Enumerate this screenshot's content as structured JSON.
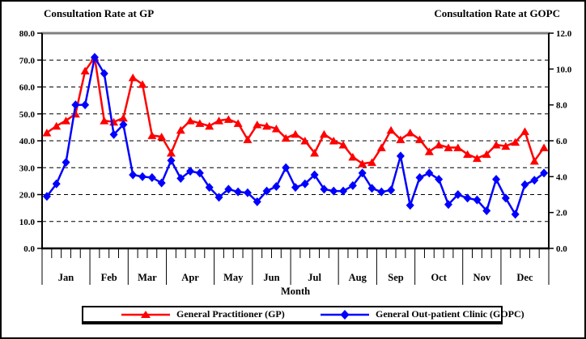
{
  "titles": {
    "left_axis_title": "Consultation Rate at GP",
    "right_axis_title": "Consultation Rate at GOPC",
    "x_axis_title": "Month"
  },
  "legend": {
    "gp_label": "General Practitioner (GP)",
    "gopc_label": "General Out-patient Clinic (GOPC)"
  },
  "colors": {
    "gp": "#ff0000",
    "gopc": "#0000ff",
    "grid": "#000000",
    "plot_top_border": "#808080"
  },
  "chart_data": {
    "type": "line",
    "x_unit": "week",
    "months": [
      "Jan",
      "Feb",
      "Mar",
      "Apr",
      "May",
      "Jun",
      "Jul",
      "Aug",
      "Sep",
      "Oct",
      "Nov",
      "Dec"
    ],
    "weeks_per_month": [
      5,
      4,
      4,
      5,
      4,
      4,
      5,
      4,
      4,
      5,
      4,
      5
    ],
    "xlabel": "Month",
    "grid": "horizontal-dashed",
    "legend_position": "bottom",
    "left_axis": {
      "label": "Consultation Rate at GP",
      "range": [
        0,
        80
      ],
      "tick_step": 10,
      "tick_decimals": 1
    },
    "right_axis": {
      "label": "Consultation Rate at GOPC",
      "range": [
        0,
        12
      ],
      "tick_step": 2,
      "tick_decimals": 1
    },
    "series": [
      {
        "name": "General Practitioner (GP)",
        "axis": "left",
        "color": "#ff0000",
        "marker": "triangle",
        "values": [
          43,
          45.5,
          47.5,
          50,
          66,
          71,
          47.5,
          47,
          48.5,
          63.5,
          61,
          42,
          41.5,
          35.5,
          44,
          47.5,
          46.5,
          45.5,
          47.5,
          48,
          46.5,
          40.5,
          46,
          45.5,
          44.5,
          41,
          42.5,
          40,
          35.5,
          42.5,
          40,
          38.5,
          34,
          31.5,
          32,
          37.5,
          44,
          40.5,
          43,
          40.5,
          36,
          38.5,
          37.5,
          37.5,
          35,
          33.5,
          35,
          38.5,
          38,
          39.5,
          43.5,
          32.5,
          37.5
        ]
      },
      {
        "name": "General Out-patient Clinic (GOPC)",
        "axis": "right",
        "color": "#0000ff",
        "marker": "diamond",
        "values": [
          2.9,
          3.6,
          4.8,
          8.0,
          8.0,
          10.65,
          9.75,
          6.35,
          6.9,
          4.1,
          4.0,
          3.95,
          3.65,
          4.9,
          3.9,
          4.3,
          4.2,
          3.4,
          2.85,
          3.3,
          3.15,
          3.1,
          2.6,
          3.2,
          3.45,
          4.5,
          3.4,
          3.6,
          4.1,
          3.3,
          3.2,
          3.2,
          3.5,
          4.2,
          3.35,
          3.15,
          3.25,
          5.15,
          2.4,
          3.95,
          4.2,
          3.85,
          2.45,
          3.0,
          2.8,
          2.7,
          2.1,
          3.85,
          2.8,
          1.9,
          3.55,
          3.8,
          4.2
        ]
      }
    ]
  }
}
